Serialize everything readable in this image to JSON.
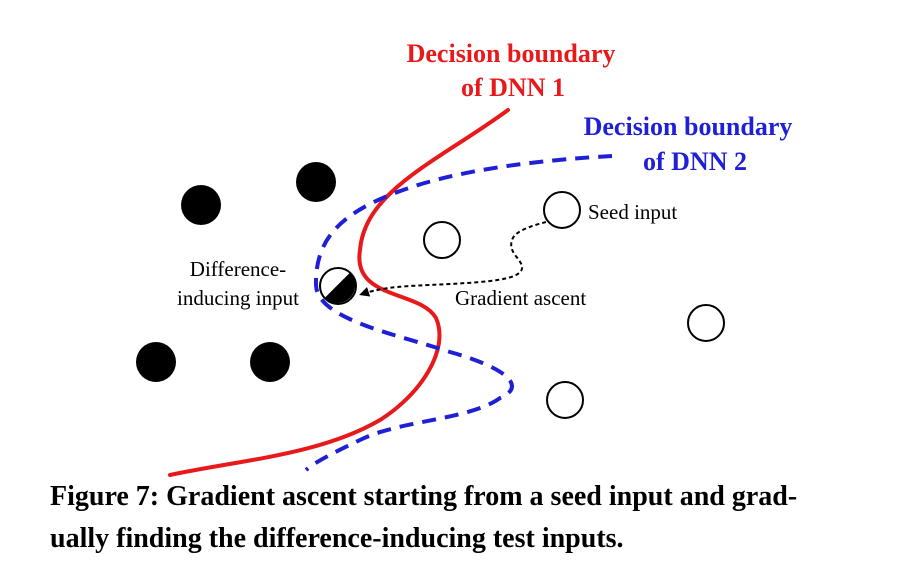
{
  "labels": {
    "dnn1_line1": "Decision boundary",
    "dnn1_line2": "of DNN 1",
    "dnn2_line1": "Decision boundary",
    "dnn2_line2": "of DNN 2",
    "seed_input": "Seed input",
    "gradient_ascent": "Gradient ascent",
    "difference_line1": "Difference-",
    "difference_line2": "inducing input"
  },
  "caption": {
    "line1": "Figure 7: Gradient ascent starting from a seed input and grad-",
    "line2": "ually finding the difference-inducing test inputs."
  },
  "colors": {
    "dnn1": "#e8191b",
    "dnn2": "#1f1fd6",
    "text": "#000000"
  }
}
